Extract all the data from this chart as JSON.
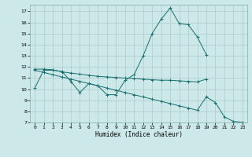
{
  "xlabel": "Humidex (Indice chaleur)",
  "background_color": "#cce8e8",
  "grid_color": "#aacccc",
  "line_color": "#1a6e6e",
  "xlim": [
    -0.5,
    23.5
  ],
  "ylim": [
    7,
    17.6
  ],
  "yticks": [
    7,
    8,
    9,
    10,
    11,
    12,
    13,
    14,
    15,
    16,
    17
  ],
  "xticks": [
    0,
    1,
    2,
    3,
    4,
    5,
    6,
    7,
    8,
    9,
    10,
    11,
    12,
    13,
    14,
    15,
    16,
    17,
    18,
    19,
    20,
    21,
    22,
    23
  ],
  "line1_x": [
    0,
    1,
    2,
    3,
    4,
    5,
    6,
    7,
    8,
    9,
    10,
    11,
    12,
    13,
    14,
    15,
    16,
    17,
    18,
    19
  ],
  "line1_y": [
    10.1,
    11.7,
    11.7,
    11.6,
    10.7,
    9.7,
    10.5,
    10.3,
    9.5,
    9.5,
    10.8,
    11.3,
    13.0,
    15.0,
    16.3,
    17.3,
    15.9,
    15.8,
    14.7,
    13.1
  ],
  "line2_x": [
    0,
    1,
    2,
    3,
    4,
    5,
    6,
    7,
    8,
    9,
    10,
    11,
    12,
    13,
    14,
    15,
    16,
    17,
    18,
    19
  ],
  "line2_y": [
    11.8,
    11.8,
    11.75,
    11.55,
    11.45,
    11.35,
    11.25,
    11.15,
    11.1,
    11.05,
    11.0,
    10.95,
    10.9,
    10.85,
    10.8,
    10.8,
    10.75,
    10.7,
    10.65,
    10.9
  ],
  "line3_x": [
    0,
    1,
    2,
    3,
    4,
    5,
    6,
    7,
    8,
    9,
    10,
    11,
    12,
    13,
    14,
    15,
    16,
    17,
    18,
    19,
    20,
    21,
    22,
    23
  ],
  "line3_y": [
    11.7,
    11.5,
    11.3,
    11.1,
    10.9,
    10.7,
    10.5,
    10.3,
    10.1,
    9.9,
    9.7,
    9.5,
    9.3,
    9.1,
    8.9,
    8.7,
    8.5,
    8.3,
    8.1,
    9.3,
    8.8,
    7.5,
    7.1,
    7.0
  ]
}
